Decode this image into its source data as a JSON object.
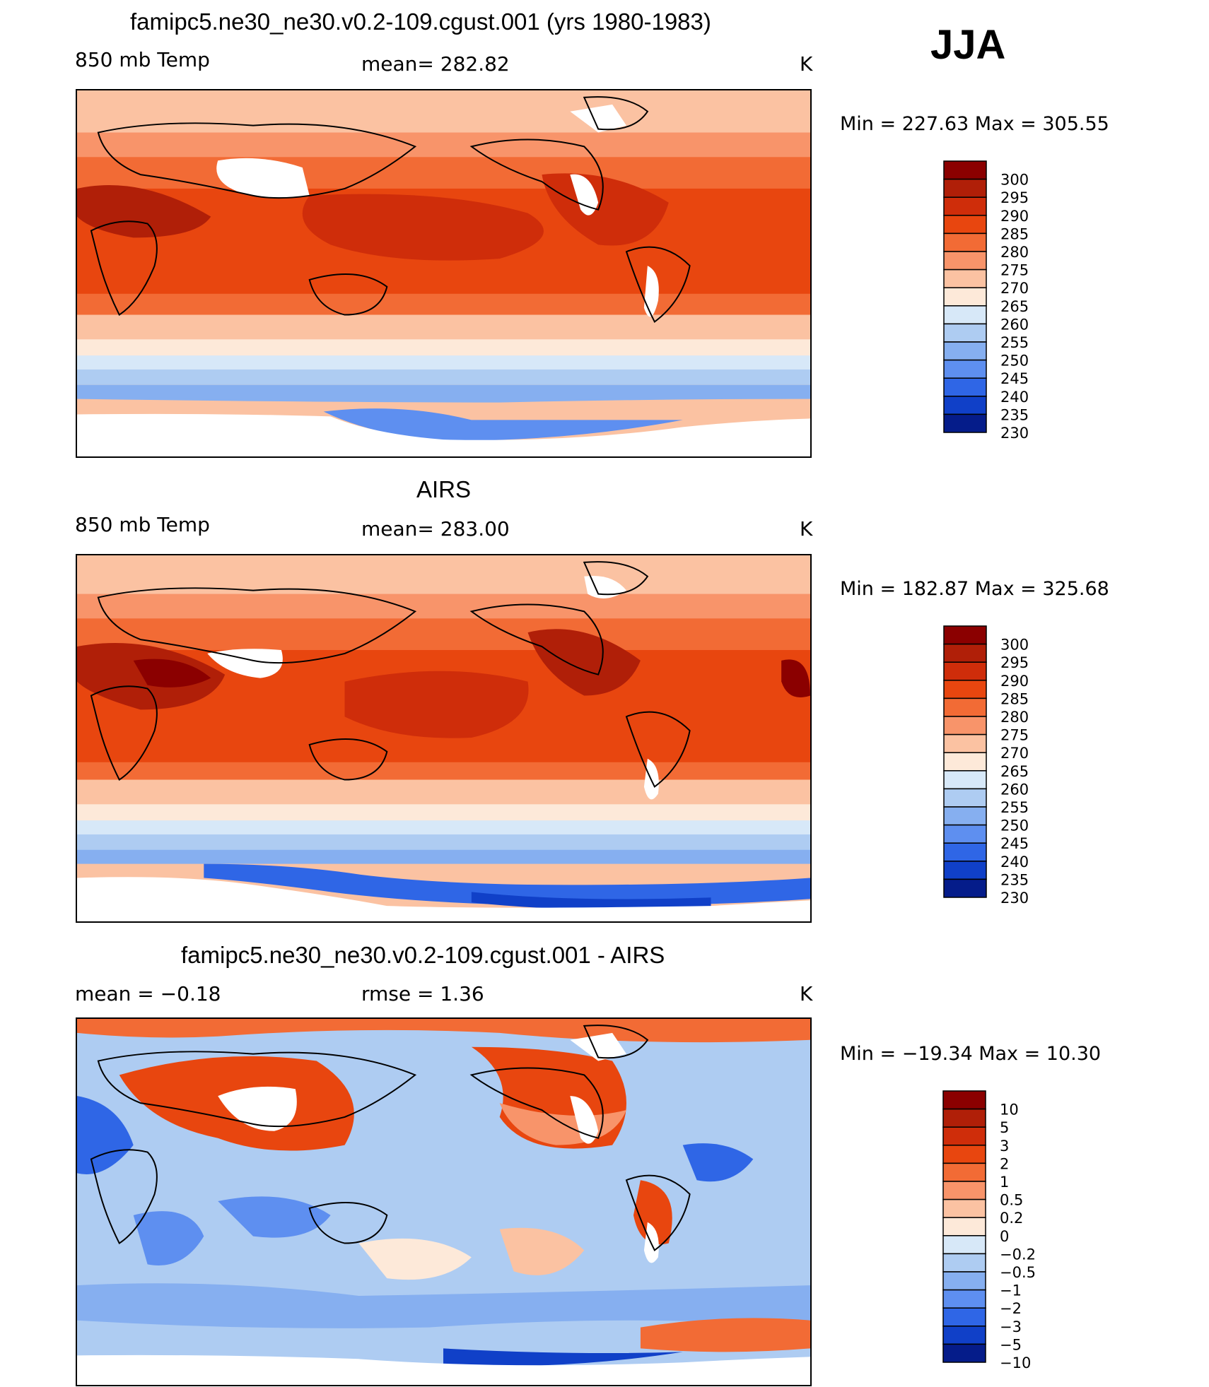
{
  "season": "JJA",
  "panels": [
    {
      "title": "famipc5.ne30_ne30.v0.2-109.cgust.001 (yrs 1980-1983)",
      "left_label": "850 mb Temp",
      "center_label": "mean= 282.82",
      "units": "K",
      "minmax": "Min = 227.63 Max = 305.55",
      "colorbar": {
        "levels": [
          "300",
          "295",
          "290",
          "285",
          "280",
          "275",
          "270",
          "265",
          "260",
          "255",
          "250",
          "245",
          "240",
          "235",
          "230"
        ],
        "colors": [
          "#8b0000",
          "#b01f08",
          "#cf2d0a",
          "#e8460f",
          "#f26b35",
          "#f8946a",
          "#fbc2a2",
          "#fde9d9",
          "#d7e8f8",
          "#aeccf2",
          "#86aff0",
          "#5e8ff0",
          "#2f66e6",
          "#1040c8",
          "#051c8a"
        ]
      }
    },
    {
      "title": "AIRS",
      "left_label": "850 mb Temp",
      "center_label": "mean= 283.00",
      "units": "K",
      "minmax": "Min = 182.87 Max = 325.68",
      "colorbar": {
        "levels": [
          "300",
          "295",
          "290",
          "285",
          "280",
          "275",
          "270",
          "265",
          "260",
          "255",
          "250",
          "245",
          "240",
          "235",
          "230"
        ],
        "colors": [
          "#8b0000",
          "#b01f08",
          "#cf2d0a",
          "#e8460f",
          "#f26b35",
          "#f8946a",
          "#fbc2a2",
          "#fde9d9",
          "#d7e8f8",
          "#aeccf2",
          "#86aff0",
          "#5e8ff0",
          "#2f66e6",
          "#1040c8",
          "#051c8a"
        ]
      }
    },
    {
      "title": "famipc5.ne30_ne30.v0.2-109.cgust.001 - AIRS",
      "left_label": "mean =  −0.18",
      "center_label": "rmse =   1.36",
      "units": "K",
      "minmax": "Min = −19.34 Max =  10.30",
      "colorbar": {
        "levels": [
          "10",
          "5",
          "3",
          "2",
          "1",
          "0.5",
          "0.2",
          "0",
          "−0.2",
          "−0.5",
          "−1",
          "−2",
          "−3",
          "−5",
          "−10"
        ],
        "colors": [
          "#8b0000",
          "#b01f08",
          "#cf2d0a",
          "#e8460f",
          "#f26b35",
          "#f8946a",
          "#fbc2a2",
          "#fde9d9",
          "#d7e8f8",
          "#aeccf2",
          "#86aff0",
          "#5e8ff0",
          "#2f66e6",
          "#1040c8",
          "#051c8a"
        ]
      }
    }
  ],
  "colors": {
    "land_outline": "#000000",
    "missing": "#ffffff"
  }
}
